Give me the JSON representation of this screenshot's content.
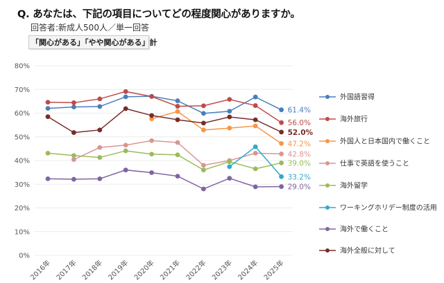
{
  "header": {
    "title": "Q. あなたは、下記の項目についてどの程度関心がありますか。",
    "subtitle": "回答者:新成人500人／単一回答",
    "note": "「関心がある」「やや関心がある」計"
  },
  "chart_data": {
    "type": "line",
    "title": "Q. あなたは、下記の項目についてどの程度関心がありますか。",
    "subtitle": "回答者:新成人500人／単一回答",
    "xlabel": "",
    "ylabel": "",
    "x": [
      "2016年",
      "2017年",
      "2018年",
      "2019年",
      "2020年",
      "2021年",
      "2022年",
      "2023年",
      "2024年",
      "2025年"
    ],
    "ylim": [
      0,
      80
    ],
    "yticks": [
      "0%",
      "10%",
      "20%",
      "30%",
      "40%",
      "50%",
      "60%",
      "70%",
      "80%"
    ],
    "grid": true,
    "legend_position": "right",
    "series": [
      {
        "name": "外国語習得",
        "color": "#4a7ebb",
        "values": [
          62.0,
          62.6,
          62.8,
          66.9,
          67.1,
          65.2,
          59.9,
          60.8,
          66.8,
          61.4
        ],
        "end_label": "61.4%"
      },
      {
        "name": "海外旅行",
        "color": "#be4b48",
        "values": [
          64.6,
          64.4,
          66.0,
          69.1,
          67.0,
          62.9,
          63.1,
          65.8,
          63.2,
          56.0
        ],
        "end_label": "56.0%"
      },
      {
        "name": "外国人と日本国内で働くこと",
        "color": "#f79646",
        "values": [
          null,
          null,
          null,
          null,
          57.6,
          60.7,
          52.9,
          53.7,
          54.6,
          47.2
        ],
        "end_label": "47.2%"
      },
      {
        "name": "仕事で英語を使うこと",
        "color": "#d99694",
        "values": [
          null,
          40.4,
          45.5,
          46.5,
          48.4,
          47.6,
          38.0,
          40.0,
          43.1,
          42.8
        ],
        "end_label": "42.8%"
      },
      {
        "name": "海外留学",
        "color": "#9bbb59",
        "values": [
          43.1,
          42.1,
          41.3,
          44.1,
          42.7,
          42.4,
          36.0,
          39.5,
          36.5,
          39.0
        ],
        "end_label": "39.0%"
      },
      {
        "name": "ワーキングホリデー制度の活用",
        "color": "#31a9c9",
        "values": [
          null,
          null,
          null,
          null,
          null,
          null,
          null,
          37.4,
          45.8,
          33.2
        ],
        "end_label": "33.2%"
      },
      {
        "name": "海外で働くこと",
        "color": "#8064a2",
        "values": [
          32.3,
          32.1,
          32.3,
          36.0,
          34.9,
          33.4,
          28.0,
          32.5,
          28.9,
          29.0
        ],
        "end_label": "29.0%"
      },
      {
        "name": "海外全般に対して",
        "color": "#772c2a",
        "values": [
          58.5,
          51.8,
          52.9,
          61.9,
          59.0,
          57.2,
          55.8,
          58.4,
          57.2,
          52.0
        ],
        "end_label": "52.0%"
      }
    ]
  }
}
